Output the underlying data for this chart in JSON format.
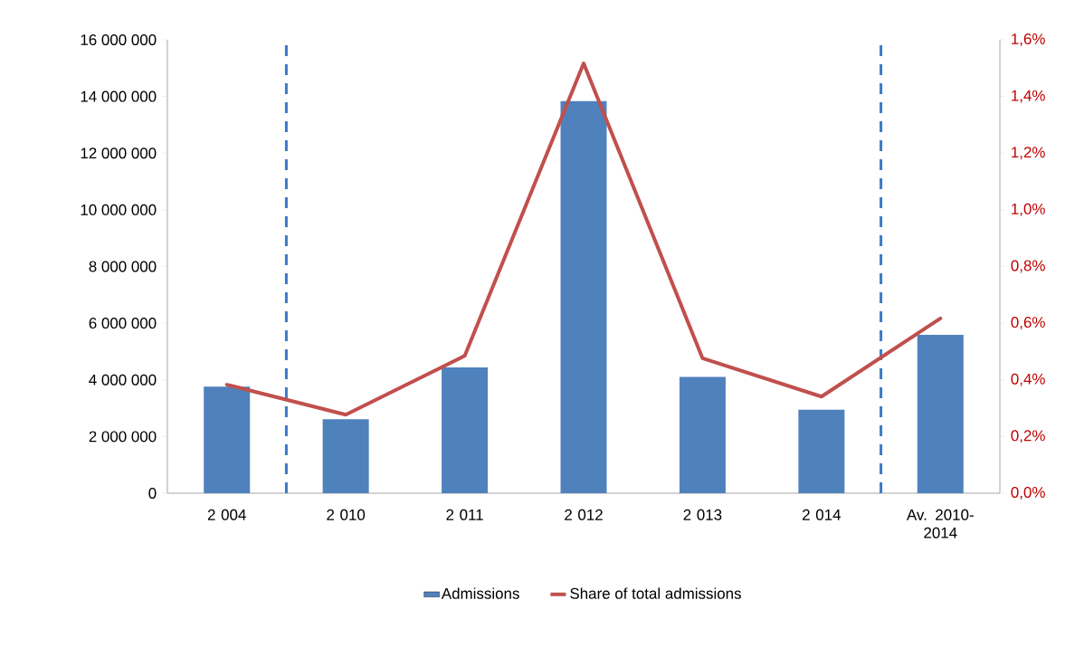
{
  "chart_data": {
    "type": "bar",
    "categories": [
      "2 004",
      "2 010",
      "2 011",
      "2 012",
      "2 013",
      "2 014",
      "Av. 2010-2014"
    ],
    "series": [
      {
        "name": "Admissions",
        "type": "bar",
        "color": "#4f81bd",
        "values": [
          3760000,
          2610000,
          4440000,
          13840000,
          4100000,
          2950000,
          5590000
        ]
      },
      {
        "name": "Share of total admissions",
        "type": "line",
        "axis": "y2",
        "color": "#c0504d",
        "values": [
          0.383,
          0.277,
          0.485,
          1.517,
          0.476,
          0.341,
          0.617
        ]
      }
    ],
    "ylim": [
      0,
      16000000
    ],
    "yticks": [
      {
        "value": 0,
        "label": "0"
      },
      {
        "value": 2000000,
        "label": "2 000 000"
      },
      {
        "value": 4000000,
        "label": "4 000 000"
      },
      {
        "value": 6000000,
        "label": "6 000 000"
      },
      {
        "value": 8000000,
        "label": "8 000 000"
      },
      {
        "value": 10000000,
        "label": "10 000 000"
      },
      {
        "value": 12000000,
        "label": "12 000 000"
      },
      {
        "value": 14000000,
        "label": "14 000 000"
      },
      {
        "value": 16000000,
        "label": "16 000 000"
      }
    ],
    "y2lim": [
      0,
      1.6
    ],
    "y2ticks": [
      {
        "value": 0,
        "label": "0,0%"
      },
      {
        "value": 0.2,
        "label": "0,2%"
      },
      {
        "value": 0.4,
        "label": "0,4%"
      },
      {
        "value": 0.6,
        "label": "0,6%"
      },
      {
        "value": 0.8,
        "label": "0,8%"
      },
      {
        "value": 1.0,
        "label": "1,0%"
      },
      {
        "value": 1.2,
        "label": "1,2%"
      },
      {
        "value": 1.4,
        "label": "1,4%"
      },
      {
        "value": 1.6,
        "label": "1,6%"
      }
    ],
    "legend": "bottom"
  }
}
